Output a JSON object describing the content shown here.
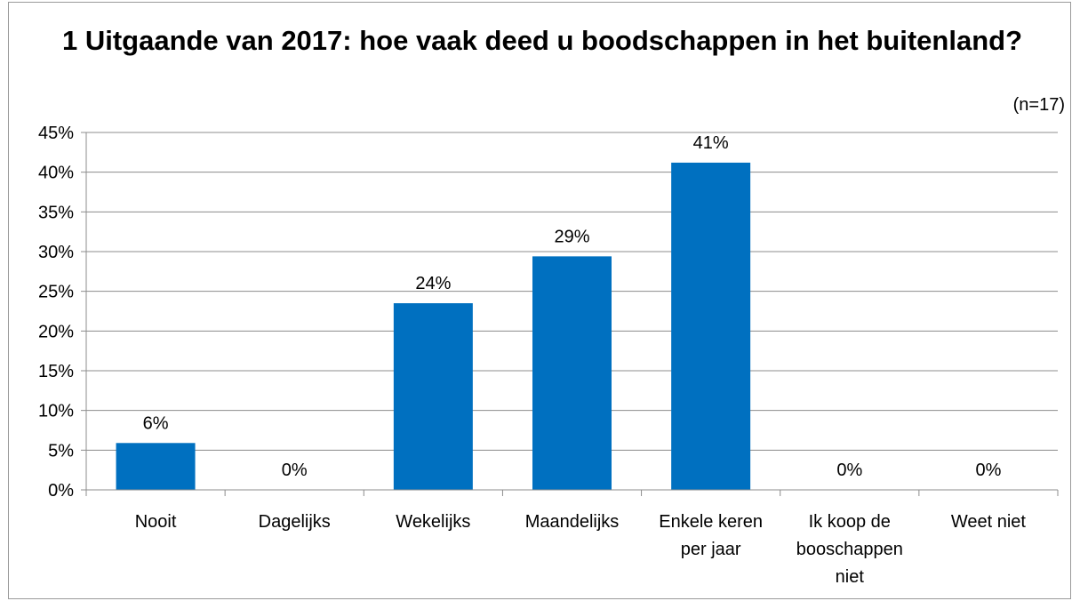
{
  "chart_data": {
    "type": "bar",
    "title": "1 Uitgaande van 2017: hoe vaak deed u boodschappen in het buitenland?",
    "note": "(n=17)",
    "categories": [
      [
        "Nooit"
      ],
      [
        "Dagelijks"
      ],
      [
        "Wekelijks"
      ],
      [
        "Maandelijks"
      ],
      [
        "Enkele keren",
        "per jaar"
      ],
      [
        "Ik koop de",
        "booschappen",
        "niet"
      ],
      [
        "Weet niet"
      ]
    ],
    "values": [
      5.9,
      0,
      23.5,
      29.4,
      41.2,
      0,
      0
    ],
    "data_labels": [
      "6%",
      "0%",
      "24%",
      "29%",
      "41%",
      "0%",
      "0%"
    ],
    "ylim": [
      0,
      45
    ],
    "ytick_step": 5,
    "ytick_suffix": "%",
    "grid": true,
    "legend": "none",
    "bar_color": "#0070c0"
  }
}
